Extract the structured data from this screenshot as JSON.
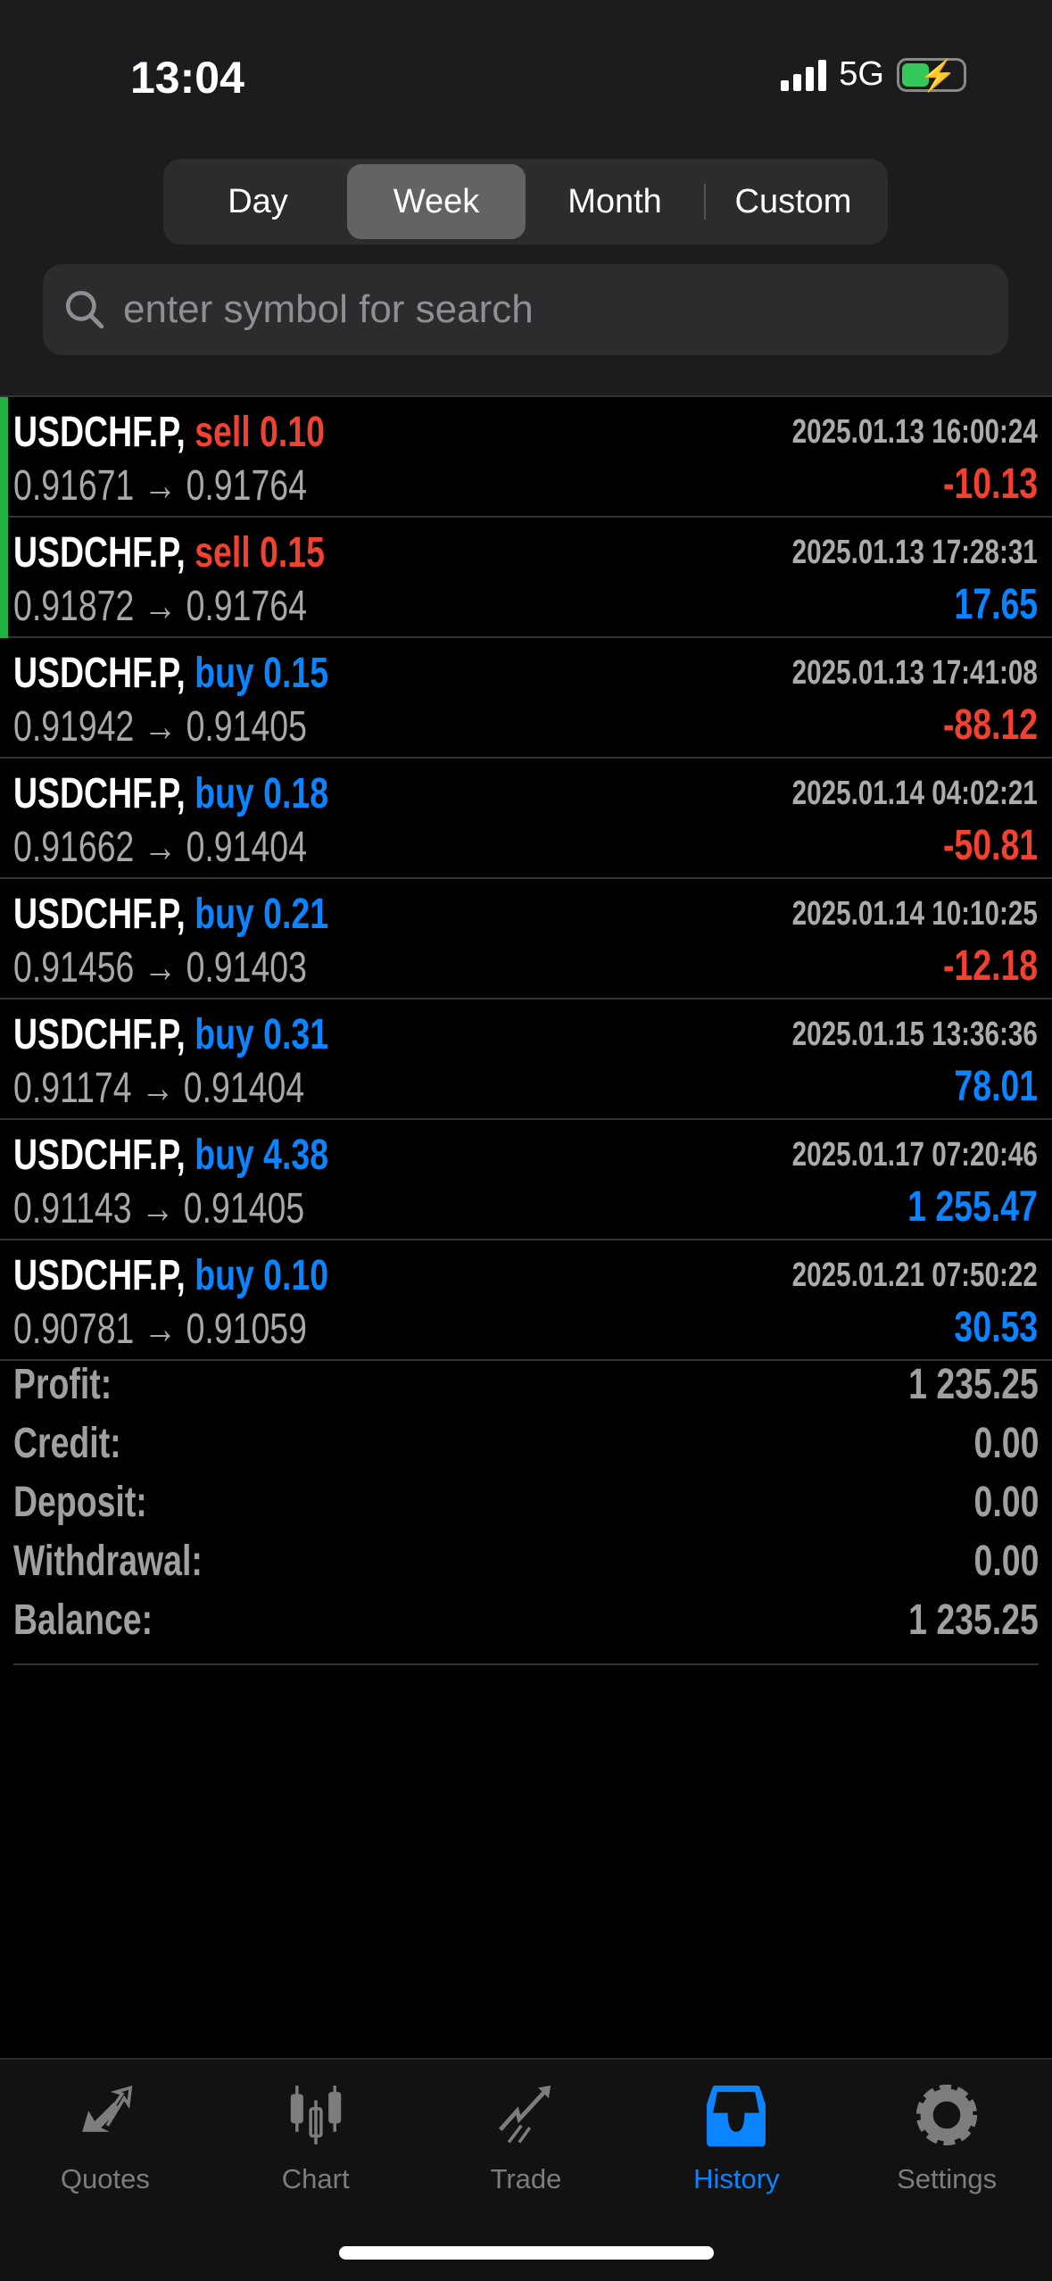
{
  "status": {
    "time": "13:04",
    "network": "5G",
    "battery_charging": true
  },
  "period_tabs": [
    {
      "label": "Day",
      "active": false
    },
    {
      "label": "Week",
      "active": true
    },
    {
      "label": "Month",
      "active": false
    },
    {
      "label": "Custom",
      "active": false
    }
  ],
  "search": {
    "placeholder": "enter symbol for search",
    "value": ""
  },
  "deals": [
    {
      "symbol": "USDCHF.P,",
      "side": "sell 0.10",
      "side_type": "sell",
      "time": "2025.01.13 16:00:24",
      "prices": "0.91671 → 0.91764",
      "profit": "-10.13",
      "profit_sign": "neg",
      "marked": true
    },
    {
      "symbol": "USDCHF.P,",
      "side": "sell 0.15",
      "side_type": "sell",
      "time": "2025.01.13 17:28:31",
      "prices": "0.91872 → 0.91764",
      "profit": "17.65",
      "profit_sign": "pos",
      "marked": true
    },
    {
      "symbol": "USDCHF.P,",
      "side": "buy 0.15",
      "side_type": "buy",
      "time": "2025.01.13 17:41:08",
      "prices": "0.91942 → 0.91405",
      "profit": "-88.12",
      "profit_sign": "neg",
      "marked": false
    },
    {
      "symbol": "USDCHF.P,",
      "side": "buy 0.18",
      "side_type": "buy",
      "time": "2025.01.14 04:02:21",
      "prices": "0.91662 → 0.91404",
      "profit": "-50.81",
      "profit_sign": "neg",
      "marked": false
    },
    {
      "symbol": "USDCHF.P,",
      "side": "buy 0.21",
      "side_type": "buy",
      "time": "2025.01.14 10:10:25",
      "prices": "0.91456 → 0.91403",
      "profit": "-12.18",
      "profit_sign": "neg",
      "marked": false
    },
    {
      "symbol": "USDCHF.P,",
      "side": "buy 0.31",
      "side_type": "buy",
      "time": "2025.01.15 13:36:36",
      "prices": "0.91174 → 0.91404",
      "profit": "78.01",
      "profit_sign": "pos",
      "marked": false
    },
    {
      "symbol": "USDCHF.P,",
      "side": "buy 4.38",
      "side_type": "buy",
      "time": "2025.01.17 07:20:46",
      "prices": "0.91143 → 0.91405",
      "profit": "1 255.47",
      "profit_sign": "pos",
      "marked": false
    },
    {
      "symbol": "USDCHF.P,",
      "side": "buy 0.10",
      "side_type": "buy",
      "time": "2025.01.21 07:50:22",
      "prices": "0.90781 → 0.91059",
      "profit": "30.53",
      "profit_sign": "pos",
      "marked": false
    }
  ],
  "summary": [
    {
      "label": "Profit:",
      "value": "1 235.25"
    },
    {
      "label": "Credit:",
      "value": "0.00"
    },
    {
      "label": "Deposit:",
      "value": "0.00"
    },
    {
      "label": "Withdrawal:",
      "value": "0.00"
    },
    {
      "label": "Balance:",
      "value": "1 235.25"
    }
  ],
  "tabbar": [
    {
      "label": "Quotes",
      "icon": "quotes-arrows-icon",
      "active": false
    },
    {
      "label": "Chart",
      "icon": "candlestick-icon",
      "active": false
    },
    {
      "label": "Trade",
      "icon": "trend-arrow-icon",
      "active": false
    },
    {
      "label": "History",
      "icon": "inbox-tray-icon",
      "active": true
    },
    {
      "label": "Settings",
      "icon": "gear-icon",
      "active": false
    }
  ],
  "colors": {
    "sell": "#f2412e",
    "buy": "#0a84ff",
    "accent": "#0a84ff",
    "marker": "#1fb141"
  }
}
